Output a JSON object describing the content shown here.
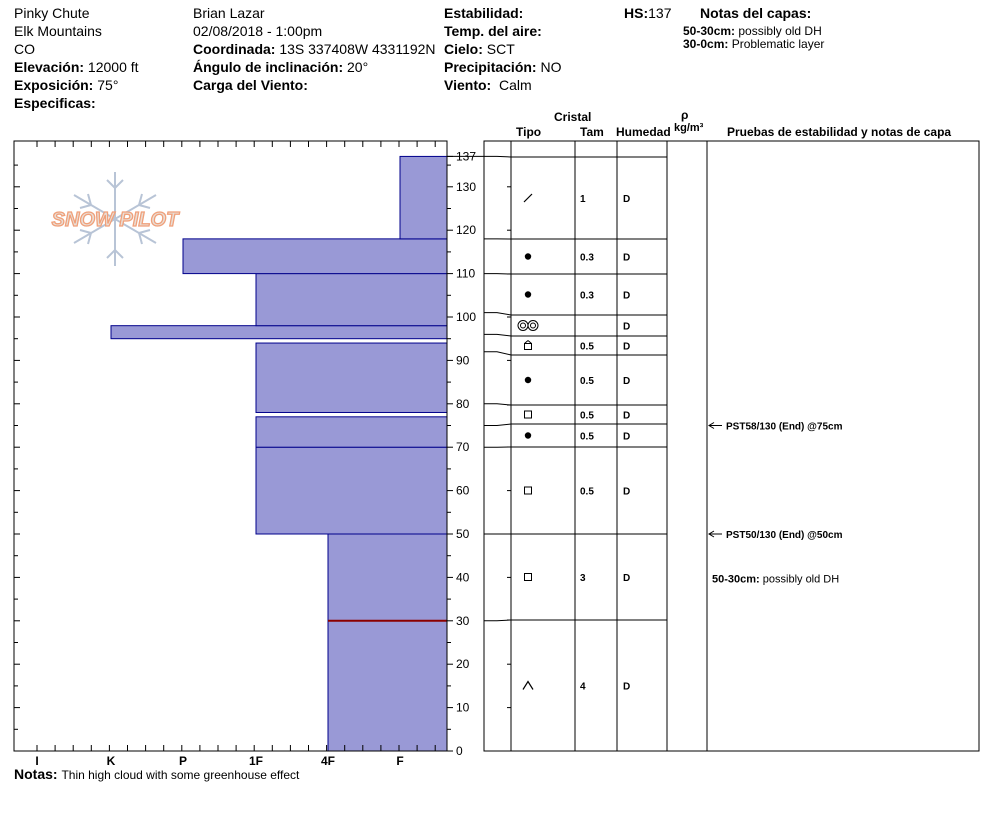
{
  "site": {
    "location": "Pinky Chute",
    "range": "Elk Mountains",
    "state": "CO",
    "elevation_label": "Elevación:",
    "elevation": "12000 ft",
    "aspect_label": "Exposición:",
    "aspect": "75°",
    "specifics_label": "Especificas:"
  },
  "observer": {
    "name": "Brian Lazar",
    "datetime": "02/08/2018 - 1:00pm",
    "coord_label": "Coordinada:",
    "coord": "13S 337408W 4331192N",
    "slope_label": "Ángulo de inclinación:",
    "slope": "20°",
    "wind_load_label": "Carga del Viento:"
  },
  "conditions": {
    "stability_label": "Estabilidad:",
    "air_temp_label": "Temp. del aire:",
    "sky_label": "Cielo:",
    "sky": "SCT",
    "precip_label": "Precipitación:",
    "precip": "NO",
    "wind_label": "Viento:",
    "wind": "Calm"
  },
  "hs": {
    "label": "HS:",
    "value": "137"
  },
  "layer_notes": {
    "title": "Notas del capas:",
    "items": [
      {
        "range": "50-30cm:",
        "text": "possibly old DH"
      },
      {
        "range": "30-0cm:",
        "text": "Problematic layer"
      }
    ]
  },
  "notes": {
    "label": "Notas:",
    "text": "Thin high cloud with some greenhouse effect"
  },
  "logo_text": "SNOW PILOT",
  "columns": {
    "crystal": "Cristal",
    "type": "Tipo",
    "size": "Tam",
    "moisture": "Humedad",
    "rho": "ρ",
    "density_unit": "kg/m³",
    "tests": "Pruebas de estabilidad y notas de capa"
  },
  "colors": {
    "hardness_fill": "#9999d6",
    "hardness_stroke": "#00008b",
    "marker": "#8b0000"
  },
  "chart_data": {
    "type": "bar",
    "hardness_scale": [
      "I",
      "K",
      "P",
      "1F",
      "4F",
      "F"
    ],
    "ylim": [
      0,
      137
    ],
    "y_ticks": [
      0,
      10,
      20,
      30,
      40,
      50,
      60,
      70,
      80,
      90,
      100,
      110,
      120,
      130,
      137
    ],
    "hardness_profile": [
      {
        "bottom": 0,
        "top": 50,
        "hardness": "4F"
      },
      {
        "bottom": 50,
        "top": 70,
        "hardness": "1F"
      },
      {
        "bottom": 70,
        "top": 77,
        "hardness": "1F"
      },
      {
        "bottom": 78,
        "top": 94,
        "hardness": "1F"
      },
      {
        "bottom": 95,
        "top": 98,
        "hardness": "K"
      },
      {
        "bottom": 98,
        "top": 110,
        "hardness": "1F"
      },
      {
        "bottom": 110,
        "top": 118,
        "hardness": "P+"
      },
      {
        "bottom": 118,
        "top": 137,
        "hardness": "F+"
      }
    ],
    "marker_depth": 30,
    "layers": [
      {
        "bottom": 118,
        "top": 137,
        "grain": "decomposing",
        "size": "1",
        "moisture": "D"
      },
      {
        "bottom": 110,
        "top": 118,
        "grain": "rounded",
        "size": "0.3",
        "moisture": "D"
      },
      {
        "bottom": 101,
        "top": 110,
        "grain": "rounded",
        "size": "0.3",
        "moisture": "D"
      },
      {
        "bottom": 96,
        "top": 101,
        "grain": "crust",
        "size": "",
        "moisture": "D"
      },
      {
        "bottom": 92,
        "top": 96,
        "grain": "mixed",
        "size": "0.5",
        "moisture": "D"
      },
      {
        "bottom": 80,
        "top": 92,
        "grain": "rounded",
        "size": "0.5",
        "moisture": "D"
      },
      {
        "bottom": 75,
        "top": 80,
        "grain": "faceted",
        "size": "0.5",
        "moisture": "D"
      },
      {
        "bottom": 70,
        "top": 75,
        "grain": "rounded",
        "size": "0.5",
        "moisture": "D"
      },
      {
        "bottom": 50,
        "top": 70,
        "grain": "faceted",
        "size": "0.5",
        "moisture": "D"
      },
      {
        "bottom": 30,
        "top": 50,
        "grain": "faceted",
        "size": "3",
        "moisture": "D"
      },
      {
        "bottom": 0,
        "top": 30,
        "grain": "depth-hoar",
        "size": "4",
        "moisture": "D"
      }
    ],
    "tests": [
      {
        "depth": 75,
        "text": "PST58/130 (End) @75cm"
      },
      {
        "depth": 50,
        "text": "PST50/130 (End) @50cm"
      }
    ],
    "layer_comments": [
      {
        "depth": 40,
        "range": "50-30cm:",
        "text": "possibly old DH"
      }
    ]
  }
}
